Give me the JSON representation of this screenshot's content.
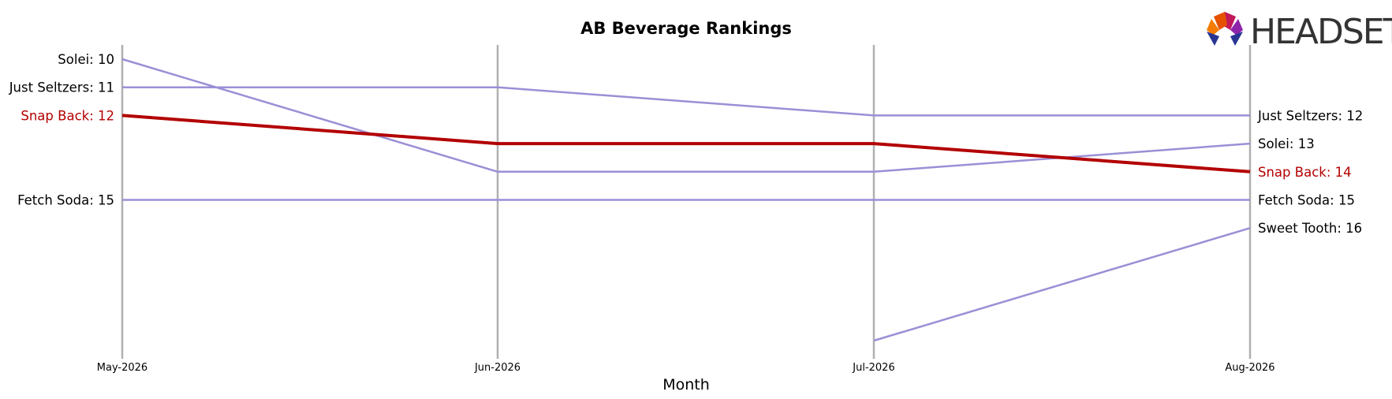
{
  "logo": {
    "text": "HEADSET"
  },
  "chart_data": {
    "type": "line",
    "title": "AB Beverage Rankings",
    "xlabel": "Month",
    "ylabel": "",
    "categories": [
      "May-2026",
      "Jun-2026",
      "Jul-2026",
      "Aug-2026"
    ],
    "y_inverted": true,
    "ylim": [
      9.8,
      20.5
    ],
    "grid": "vertical lines at each month",
    "highlight_series": "Snap Back",
    "colors": {
      "highlight": "#b30000",
      "other": "#9b8fd6",
      "gridline": "#b0b0b0"
    },
    "series": [
      {
        "name": "Solei",
        "values": [
          10,
          14,
          14,
          13
        ],
        "highlight": false,
        "left_label": "Solei: 10",
        "right_label": "Solei: 13"
      },
      {
        "name": "Just Seltzers",
        "values": [
          11,
          11,
          12,
          12
        ],
        "highlight": false,
        "left_label": "Just Seltzers: 11",
        "right_label": "Just Seltzers: 12"
      },
      {
        "name": "Fetch Soda",
        "values": [
          15,
          15,
          15,
          15
        ],
        "highlight": false,
        "left_label": "Fetch Soda: 15",
        "right_label": "Fetch Soda: 15"
      },
      {
        "name": "Sweet Tooth",
        "values": [
          null,
          null,
          20,
          16
        ],
        "highlight": false,
        "left_label": "",
        "right_label": "Sweet Tooth: 16"
      },
      {
        "name": "Snap Back",
        "values": [
          12,
          13,
          13,
          14
        ],
        "highlight": true,
        "left_label": "Snap Back: 12",
        "right_label": "Snap Back: 14"
      }
    ]
  }
}
